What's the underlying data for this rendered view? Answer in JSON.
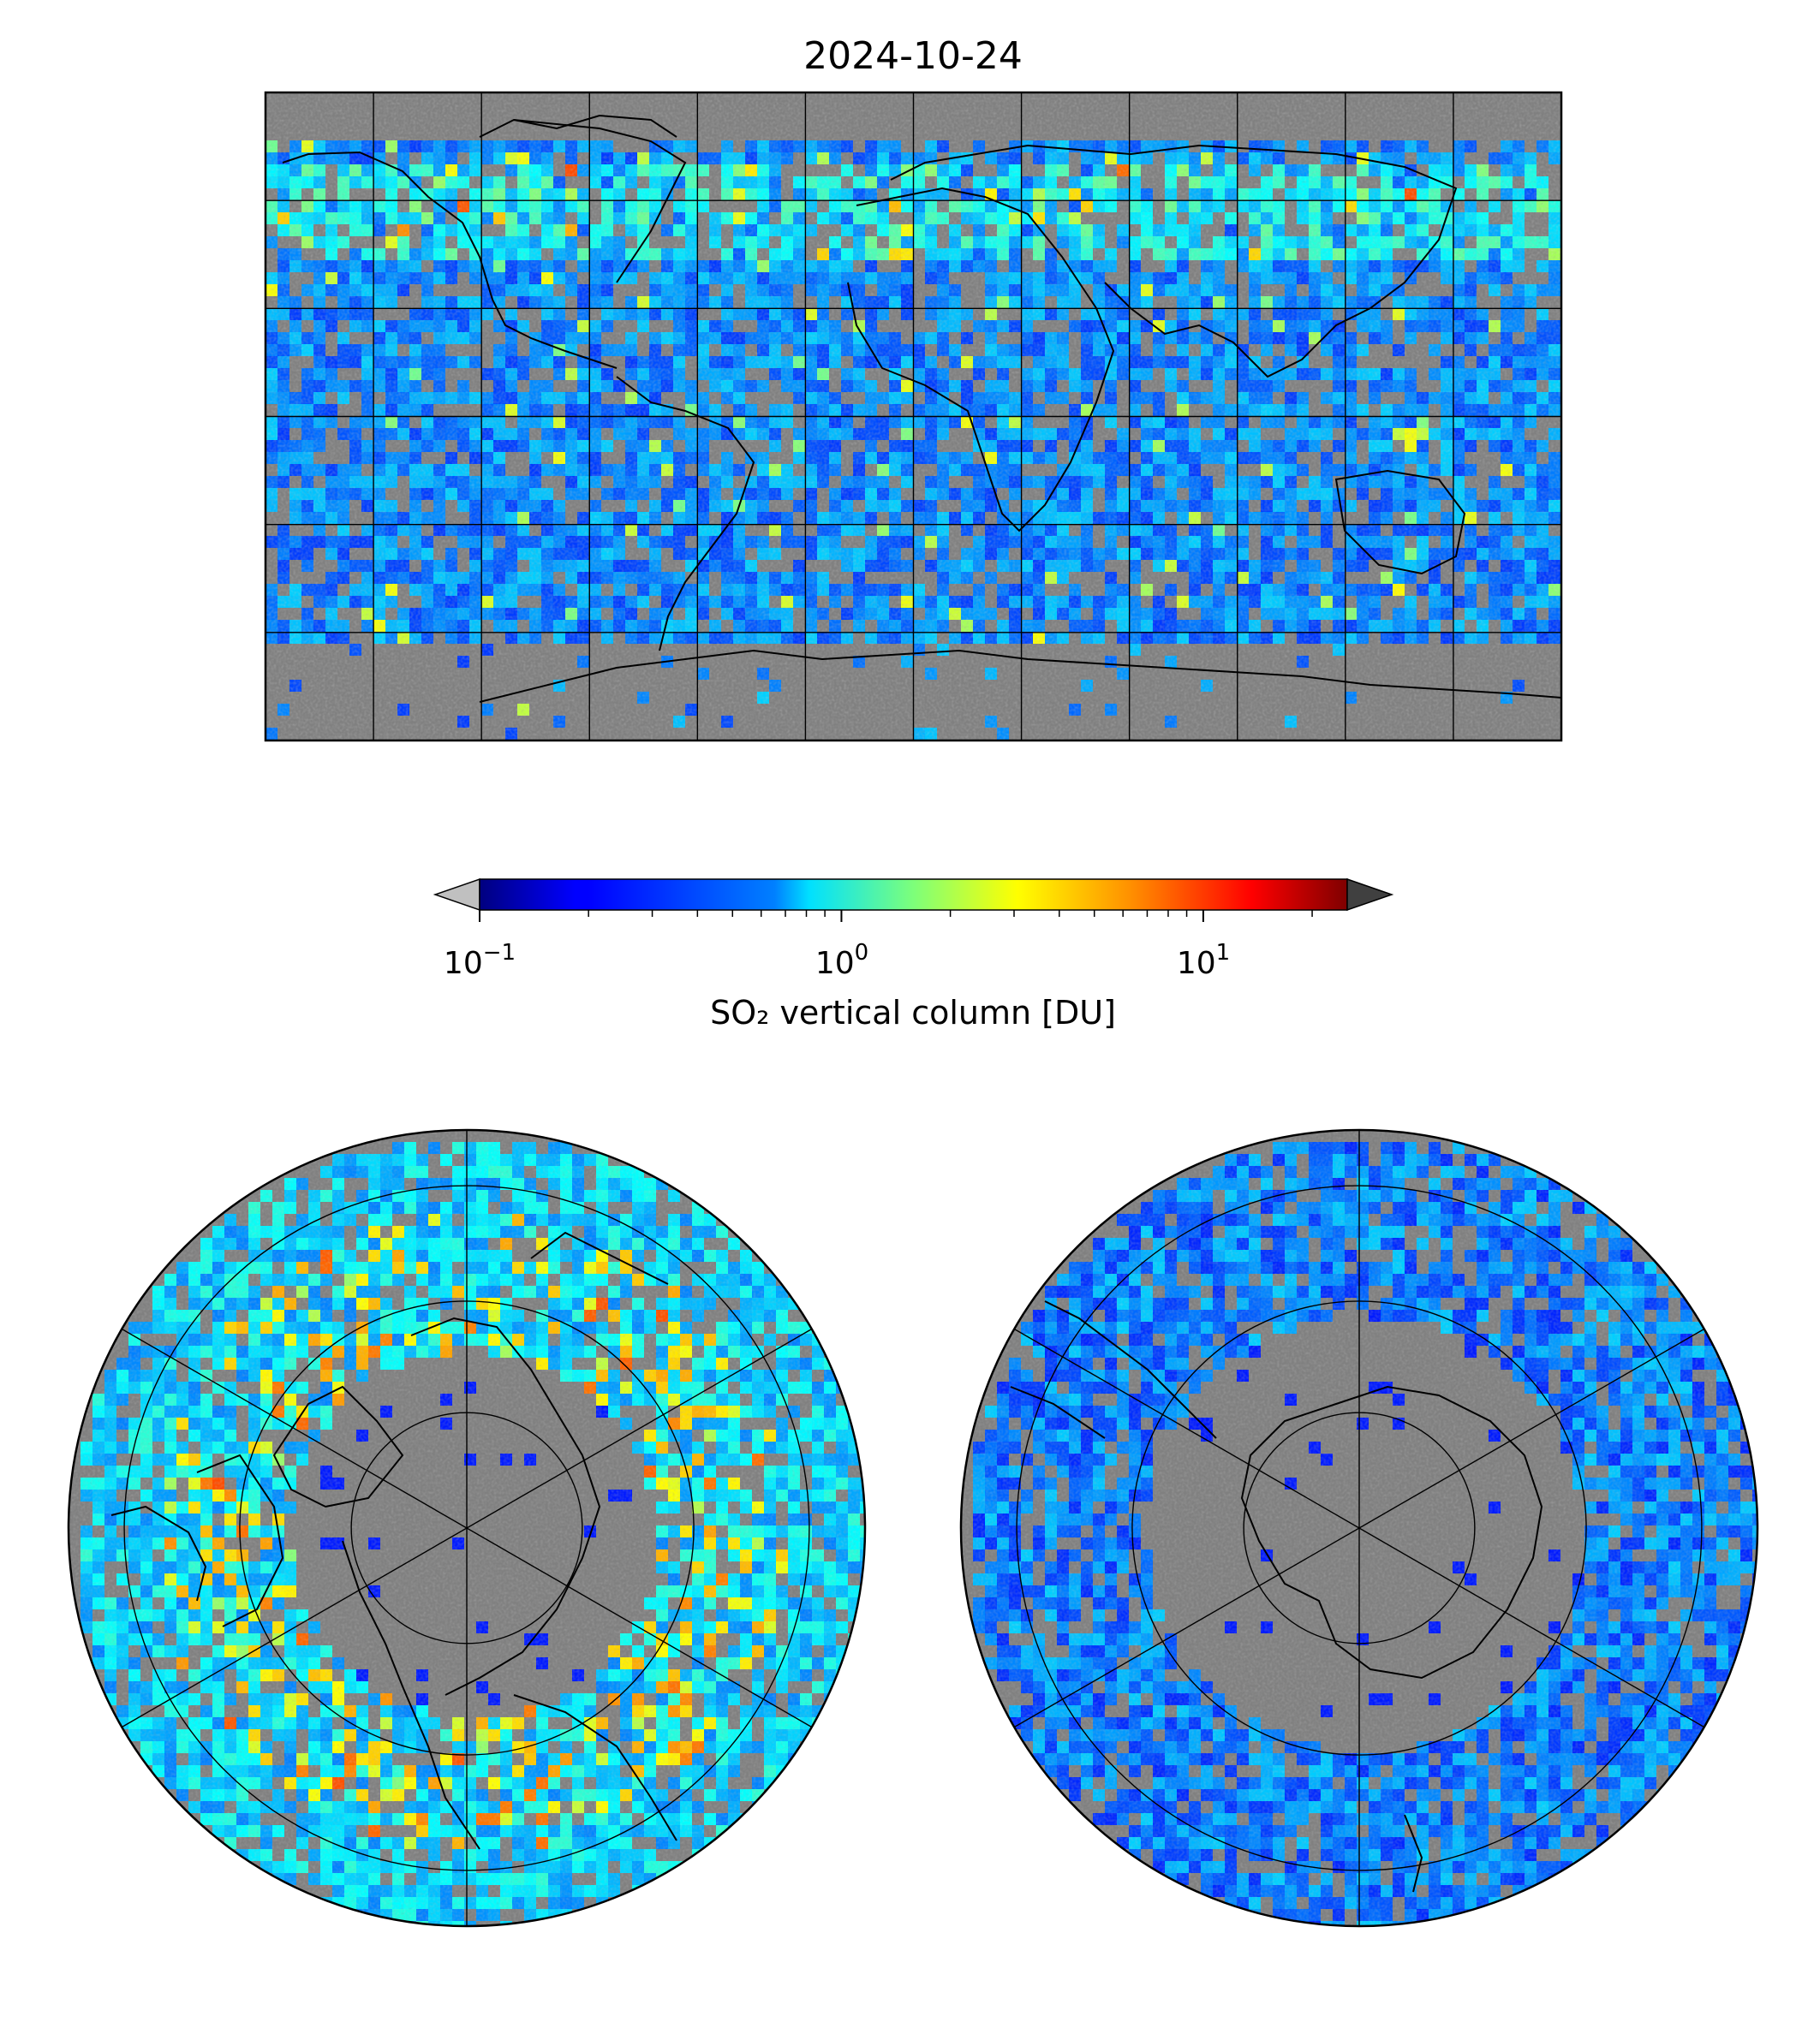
{
  "title": "2024-10-24",
  "colorbar": {
    "label": "SO₂ vertical column [DU]",
    "scale": "log",
    "range": [
      0.1,
      25
    ],
    "extend": "both",
    "under_color": "#c0c0c0",
    "over_color": "#404040",
    "colormap": "jet",
    "ticks": [
      {
        "base": "10",
        "exp": "−1",
        "value": 0.1
      },
      {
        "base": "10",
        "exp": "0",
        "value": 1
      },
      {
        "base": "10",
        "exp": "1",
        "value": 10
      }
    ]
  },
  "maps": [
    {
      "name": "global",
      "projection": "plate-carree",
      "gridlines": "30 degrees"
    },
    {
      "name": "north-polar",
      "projection": "north-polar-stereographic",
      "gridlines": true
    },
    {
      "name": "south-polar",
      "projection": "south-polar-stereographic",
      "gridlines": true
    }
  ],
  "colors": {
    "background_no_data": "#808080",
    "below_range": "#c0c0c0",
    "coastline": "#000000",
    "gridline": "#000000"
  }
}
